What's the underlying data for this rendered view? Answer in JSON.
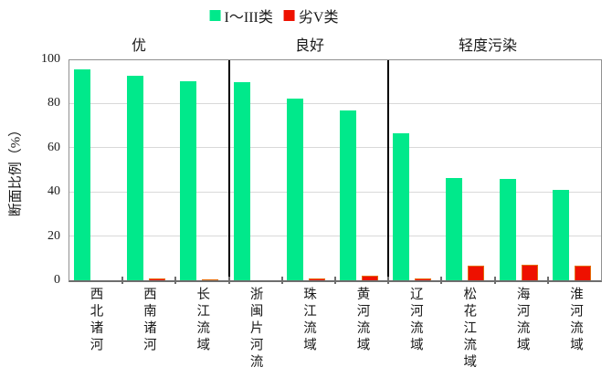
{
  "chart_data": {
    "type": "bar",
    "title": "",
    "categories": [
      "西北诸河",
      "西南诸河",
      "长江流域",
      "浙闽片河流",
      "珠江流域",
      "黄河流域",
      "辽河流域",
      "松花江流域",
      "海河流域",
      "淮河流域"
    ],
    "series": [
      {
        "name": "I～III类",
        "color": "#00E98B",
        "values": [
          96,
          93,
          90.5,
          90,
          82.5,
          77,
          67,
          46.5,
          46,
          41
        ]
      },
      {
        "name": "劣V类",
        "color": "#EE1100",
        "border_color": "#E36C0A",
        "values": [
          0,
          1,
          0.5,
          0,
          0.8,
          2,
          1,
          6.5,
          7,
          6.5
        ]
      }
    ],
    "sections": [
      {
        "label": "优",
        "categories": [
          0,
          1,
          2
        ]
      },
      {
        "label": "良好",
        "categories": [
          3,
          4,
          5
        ]
      },
      {
        "label": "轻度污染",
        "categories": [
          6,
          7,
          8,
          9
        ]
      }
    ],
    "ylabel": "断面比例（%）",
    "xlabel": "",
    "ylim": [
      0,
      100
    ],
    "yticks": [
      0,
      20,
      40,
      60,
      80,
      100
    ],
    "grid": "horizontal",
    "legend_position": "top-center"
  },
  "colors": {
    "grid": "#d9d9d9",
    "plot_border": "#909090",
    "axis": "#6e6e6e",
    "section_divider": "#000000",
    "text": "#1a1a1a"
  }
}
